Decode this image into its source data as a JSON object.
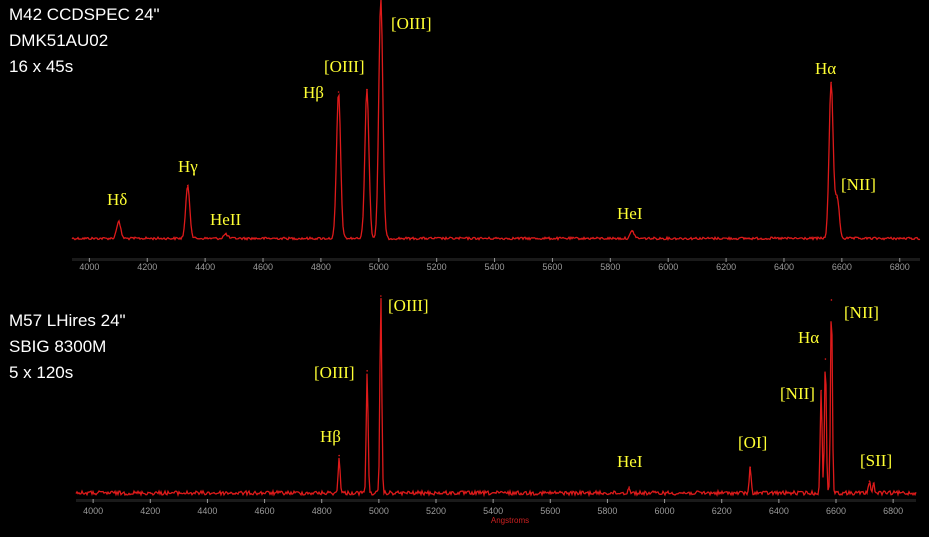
{
  "colors": {
    "background": "#000000",
    "spectrum": "#dd1a1a",
    "label": "#ffff33",
    "info": "#ffffff",
    "axis": "#9a9a9a"
  },
  "chart_data": [
    {
      "type": "line",
      "info": [
        "M42  CCDSPEC  24\"",
        "DMK51AU02",
        "16 x 45s"
      ],
      "xlabel": "",
      "xlim": [
        3940,
        6870
      ],
      "xticks": [
        4000,
        4200,
        4400,
        4600,
        4800,
        5000,
        5200,
        5400,
        5600,
        5800,
        6000,
        6200,
        6400,
        6600,
        6800
      ],
      "continuum": 0.04,
      "lines": [
        {
          "label": "Hδ",
          "x": 4101,
          "y": 0.07
        },
        {
          "label": "Hγ",
          "x": 4340,
          "y": 0.22
        },
        {
          "label": "HeII",
          "x": 4471,
          "y": 0.018
        },
        {
          "label": "Hβ",
          "x": 4861,
          "y": 0.61
        },
        {
          "label": "[OIII]",
          "x": 4959,
          "y": 0.62
        },
        {
          "label": "[OIII]",
          "x": 5007,
          "y": 1.0
        },
        {
          "label": "HeI",
          "x": 5876,
          "y": 0.03
        },
        {
          "label": "Hα",
          "x": 6563,
          "y": 0.65
        },
        {
          "label": "[NII]",
          "x": 6584,
          "y": 0.17
        }
      ]
    },
    {
      "type": "line",
      "info": [
        "M57  LHires  24\"",
        "SBIG 8300M",
        "5 x 120s"
      ],
      "xlabel": "Angstroms",
      "xlim": [
        3940,
        6880
      ],
      "xticks": [
        4000,
        4200,
        4400,
        4600,
        4800,
        5000,
        5200,
        5400,
        5600,
        5800,
        6000,
        6200,
        6400,
        6600,
        6800
      ],
      "continuum": 0.0,
      "lines": [
        {
          "label": "Hβ",
          "x": 4861,
          "y": 0.19
        },
        {
          "label": "[OIII]",
          "x": 4959,
          "y": 0.62
        },
        {
          "label": "[OIII]",
          "x": 5007,
          "y": 1.0
        },
        {
          "label": "HeI",
          "x": 5876,
          "y": 0.03
        },
        {
          "label": "[OI]",
          "x": 6300,
          "y": 0.13
        },
        {
          "label": "[NII]",
          "x": 6548,
          "y": 0.52
        },
        {
          "label": "Hα",
          "x": 6563,
          "y": 0.68
        },
        {
          "label": "[NII]",
          "x": 6584,
          "y": 0.98
        },
        {
          "label": "[SII]",
          "x": 6717,
          "y": 0.06
        },
        {
          "label": "[SII]",
          "x": 6731,
          "y": 0.05
        }
      ]
    }
  ]
}
